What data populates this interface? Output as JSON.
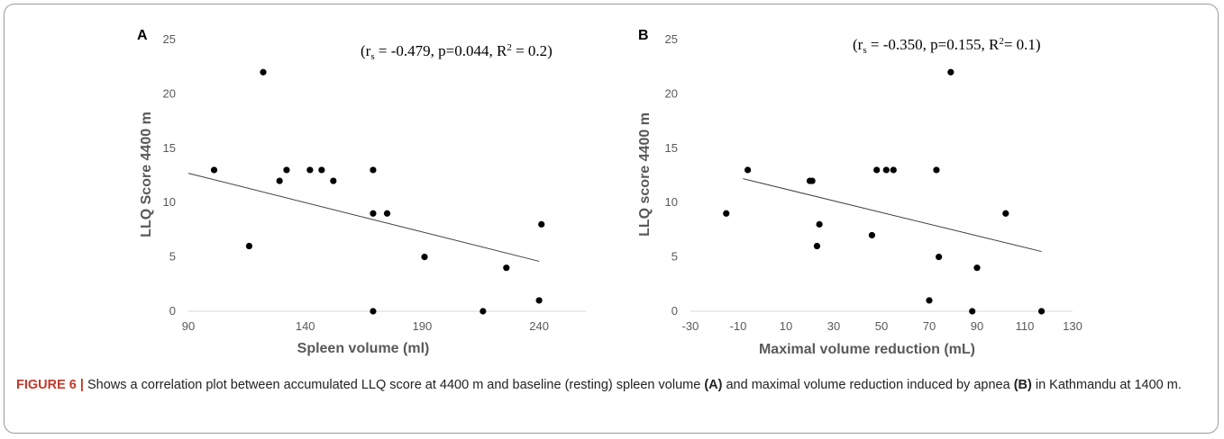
{
  "chart_data": [
    {
      "type": "scatter",
      "panel": "A",
      "stats": {
        "rs": "-0.479",
        "p": "0.044",
        "r2": "0.2"
      },
      "xlabel": "Spleen volume (ml)",
      "ylabel": "LLQ Score 4400 m",
      "xlim": [
        90,
        260
      ],
      "ylim": [
        0,
        25
      ],
      "xticks": [
        90,
        140,
        190,
        240
      ],
      "yticks": [
        0,
        5,
        10,
        15,
        20,
        25
      ],
      "points": [
        {
          "x": 101,
          "y": 13
        },
        {
          "x": 116,
          "y": 6
        },
        {
          "x": 122,
          "y": 22
        },
        {
          "x": 129,
          "y": 12
        },
        {
          "x": 132,
          "y": 13
        },
        {
          "x": 142,
          "y": 13
        },
        {
          "x": 147,
          "y": 13
        },
        {
          "x": 152,
          "y": 12
        },
        {
          "x": 169,
          "y": 13
        },
        {
          "x": 169,
          "y": 9
        },
        {
          "x": 175,
          "y": 9
        },
        {
          "x": 169,
          "y": 0
        },
        {
          "x": 191,
          "y": 5
        },
        {
          "x": 216,
          "y": 0
        },
        {
          "x": 226,
          "y": 4
        },
        {
          "x": 241,
          "y": 8
        },
        {
          "x": 240,
          "y": 1
        }
      ],
      "trendline": {
        "x": [
          90,
          240
        ],
        "y": [
          12.7,
          4.6
        ]
      },
      "grid": false
    },
    {
      "type": "scatter",
      "panel": "B",
      "stats": {
        "rs": "-0.350",
        "p": "0.155",
        "r2": "0.1"
      },
      "xlabel": "Maximal volume reduction (mL)",
      "ylabel": "LLQ score 4400 m",
      "xlim": [
        -30,
        130
      ],
      "ylim": [
        0,
        25
      ],
      "xticks": [
        -30,
        -10,
        10,
        30,
        50,
        70,
        90,
        110,
        130
      ],
      "yticks": [
        0,
        5,
        10,
        15,
        20,
        25
      ],
      "points": [
        {
          "x": -15,
          "y": 9
        },
        {
          "x": -6,
          "y": 13
        },
        {
          "x": 20,
          "y": 12
        },
        {
          "x": 21,
          "y": 12
        },
        {
          "x": 23,
          "y": 6
        },
        {
          "x": 24,
          "y": 8
        },
        {
          "x": 46,
          "y": 7
        },
        {
          "x": 48,
          "y": 13
        },
        {
          "x": 52,
          "y": 13
        },
        {
          "x": 55,
          "y": 13
        },
        {
          "x": 70,
          "y": 1
        },
        {
          "x": 73,
          "y": 13
        },
        {
          "x": 74,
          "y": 5
        },
        {
          "x": 79,
          "y": 22
        },
        {
          "x": 88,
          "y": 0
        },
        {
          "x": 90,
          "y": 4
        },
        {
          "x": 102,
          "y": 9
        },
        {
          "x": 117,
          "y": 0
        }
      ],
      "trendline": {
        "x": [
          -8,
          117
        ],
        "y": [
          12.2,
          5.5
        ]
      },
      "grid": false
    }
  ],
  "caption": {
    "label": "FIGURE 6 |",
    "part1": " Shows a correlation plot between accumulated LLQ score at 4400 m and baseline (resting) spleen volume ",
    "ref_a": "(A)",
    "part2": " and maximal volume reduction induced by apnea ",
    "ref_b": "(B)",
    "part3": " in Kathmandu at 1400 m."
  },
  "colors": {
    "points": "#000000",
    "axis": "#d9d9d9",
    "text": "#595959",
    "trendline": "#404040",
    "figure_label": "#c0392b"
  }
}
